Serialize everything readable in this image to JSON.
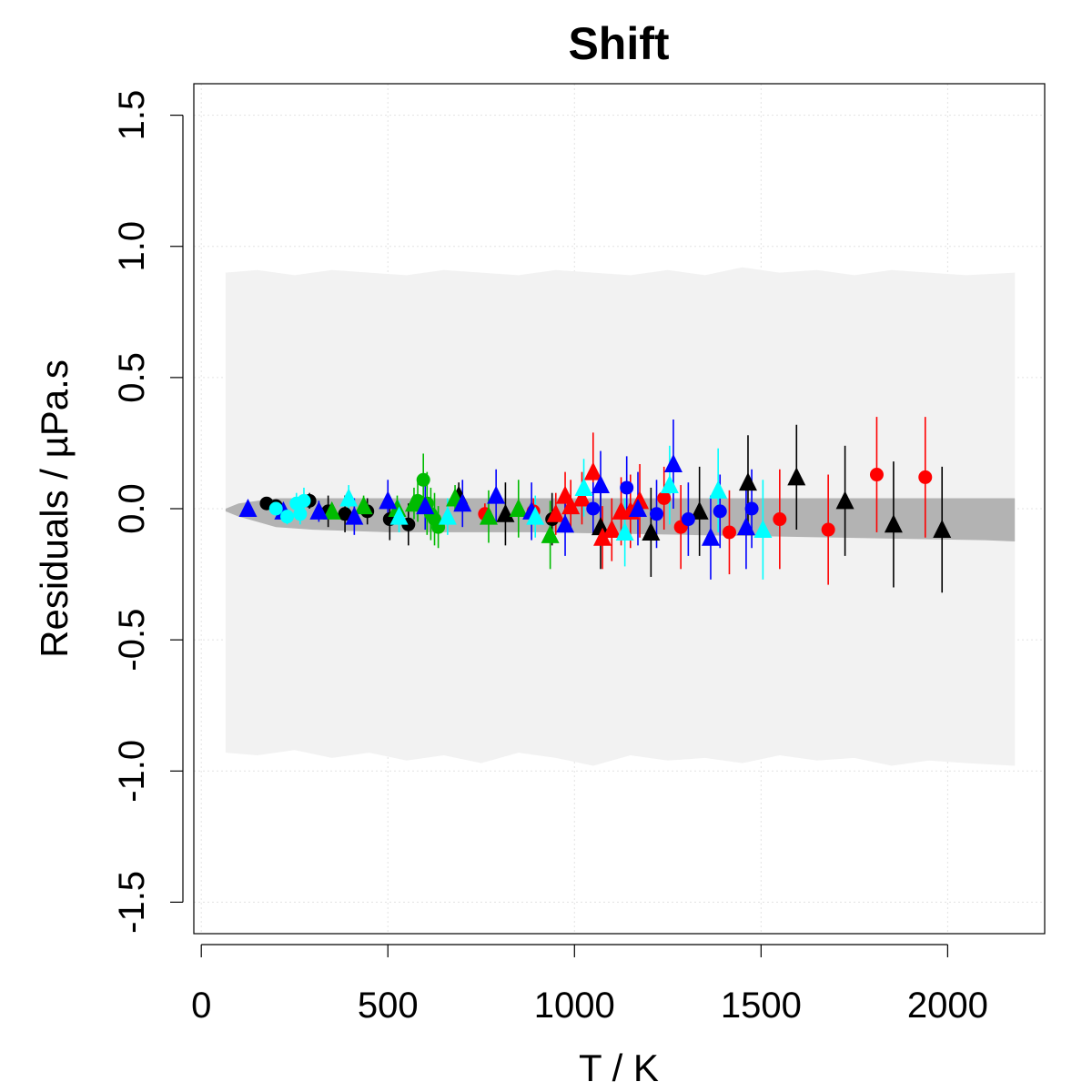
{
  "chart_data": {
    "type": "scatter",
    "title": "Shift",
    "xlabel": "T / K",
    "ylabel": "Residuals / µPa.s",
    "xlim": [
      -20,
      2260
    ],
    "ylim": [
      -1.62,
      1.62
    ],
    "xticks": [
      0,
      500,
      1000,
      1500,
      2000
    ],
    "yticks": [
      -1.5,
      -1.0,
      -0.5,
      0.0,
      0.5,
      1.0,
      1.5
    ],
    "xtick_labels": [
      "0",
      "500",
      "1000",
      "1500",
      "2000"
    ],
    "ytick_labels": [
      "-1.5",
      "-1.0",
      "-0.5",
      "0.0",
      "0.5",
      "1.0",
      "1.5"
    ],
    "grid": true,
    "colors": {
      "black": "#000000",
      "red": "#ff0000",
      "green": "#00bb00",
      "blue": "#0000ff",
      "cyan": "#00ffff",
      "outer_band": "#f2f2f2",
      "inner_band": "#b3b3b3"
    },
    "bands": {
      "outer": {
        "x": [
          65,
          150,
          250,
          350,
          450,
          550,
          650,
          750,
          850,
          950,
          1050,
          1150,
          1250,
          1350,
          1450,
          1550,
          1650,
          1750,
          1850,
          1950,
          2050,
          2180
        ],
        "upper": [
          0.9,
          0.91,
          0.89,
          0.91,
          0.9,
          0.89,
          0.91,
          0.9,
          0.89,
          0.91,
          0.9,
          0.89,
          0.91,
          0.89,
          0.92,
          0.9,
          0.91,
          0.89,
          0.91,
          0.9,
          0.89,
          0.9
        ],
        "lower": [
          -0.93,
          -0.94,
          -0.92,
          -0.95,
          -0.93,
          -0.96,
          -0.94,
          -0.97,
          -0.93,
          -0.95,
          -0.98,
          -0.94,
          -0.96,
          -0.95,
          -0.97,
          -0.94,
          -0.96,
          -0.95,
          -0.98,
          -0.96,
          -0.97,
          -0.98
        ]
      },
      "inner": {
        "x": [
          65,
          100,
          150,
          200,
          300,
          400,
          500,
          700,
          900,
          1100,
          1300,
          1500,
          1700,
          1900,
          2100,
          2180
        ],
        "upper": [
          0.0,
          0.02,
          0.03,
          0.04,
          0.04,
          0.04,
          0.04,
          0.04,
          0.04,
          0.04,
          0.04,
          0.04,
          0.04,
          0.04,
          0.04,
          0.04
        ],
        "lower": [
          -0.01,
          -0.03,
          -0.05,
          -0.07,
          -0.08,
          -0.085,
          -0.09,
          -0.09,
          -0.09,
          -0.095,
          -0.1,
          -0.105,
          -0.11,
          -0.115,
          -0.12,
          -0.125
        ]
      }
    },
    "series": [
      {
        "color": "black",
        "marker": "circle",
        "points": [
          {
            "x": 175,
            "y": 0.02,
            "err": 0.02
          },
          {
            "x": 200,
            "y": 0.01,
            "err": 0.02
          },
          {
            "x": 290,
            "y": 0.03,
            "err": 0.03
          },
          {
            "x": 340,
            "y": -0.01,
            "err": 0.06
          },
          {
            "x": 385,
            "y": -0.02,
            "err": 0.07
          },
          {
            "x": 445,
            "y": -0.01,
            "err": 0.05
          },
          {
            "x": 505,
            "y": -0.04,
            "err": 0.08
          },
          {
            "x": 555,
            "y": -0.06,
            "err": 0.08
          },
          {
            "x": 940,
            "y": -0.04,
            "err": 0.1
          }
        ]
      },
      {
        "color": "black",
        "marker": "triangle",
        "points": [
          {
            "x": 690,
            "y": 0.05,
            "err": 0.05
          },
          {
            "x": 815,
            "y": -0.02,
            "err": 0.12
          },
          {
            "x": 1070,
            "y": -0.07,
            "err": 0.16
          },
          {
            "x": 1205,
            "y": -0.09,
            "err": 0.17
          },
          {
            "x": 1335,
            "y": -0.01,
            "err": 0.17
          },
          {
            "x": 1465,
            "y": 0.1,
            "err": 0.18
          },
          {
            "x": 1595,
            "y": 0.12,
            "err": 0.2
          },
          {
            "x": 1725,
            "y": 0.03,
            "err": 0.21
          },
          {
            "x": 1855,
            "y": -0.06,
            "err": 0.24
          },
          {
            "x": 1985,
            "y": -0.08,
            "err": 0.24
          }
        ]
      },
      {
        "color": "red",
        "marker": "circle",
        "points": [
          {
            "x": 760,
            "y": -0.02,
            "err": 0.04
          },
          {
            "x": 890,
            "y": -0.01,
            "err": 0.05
          },
          {
            "x": 1240,
            "y": 0.04,
            "err": 0.12
          },
          {
            "x": 1285,
            "y": -0.07,
            "err": 0.16
          },
          {
            "x": 1415,
            "y": -0.09,
            "err": 0.16
          },
          {
            "x": 1550,
            "y": -0.04,
            "err": 0.19
          },
          {
            "x": 1680,
            "y": -0.08,
            "err": 0.21
          },
          {
            "x": 1810,
            "y": 0.13,
            "err": 0.22
          },
          {
            "x": 1940,
            "y": 0.12,
            "err": 0.23
          }
        ]
      },
      {
        "color": "red",
        "marker": "triangle",
        "points": [
          {
            "x": 950,
            "y": -0.02,
            "err": 0.08
          },
          {
            "x": 975,
            "y": 0.05,
            "err": 0.09
          },
          {
            "x": 990,
            "y": 0.01,
            "err": 0.1
          },
          {
            "x": 1020,
            "y": 0.04,
            "err": 0.1
          },
          {
            "x": 1050,
            "y": 0.14,
            "err": 0.15
          },
          {
            "x": 1075,
            "y": -0.11,
            "err": 0.12
          },
          {
            "x": 1100,
            "y": -0.08,
            "err": 0.12
          },
          {
            "x": 1125,
            "y": -0.01,
            "err": 0.13
          },
          {
            "x": 1150,
            "y": -0.01,
            "err": 0.14
          },
          {
            "x": 1175,
            "y": 0.03,
            "err": 0.14
          }
        ]
      },
      {
        "color": "green",
        "marker": "circle",
        "points": [
          {
            "x": 580,
            "y": 0.03,
            "err": 0.08
          },
          {
            "x": 595,
            "y": 0.11,
            "err": 0.1
          },
          {
            "x": 605,
            "y": 0.02,
            "err": 0.12
          },
          {
            "x": 615,
            "y": -0.02,
            "err": 0.1
          },
          {
            "x": 625,
            "y": -0.04,
            "err": 0.1
          },
          {
            "x": 635,
            "y": -0.07,
            "err": 0.08
          }
        ]
      },
      {
        "color": "green",
        "marker": "triangle",
        "points": [
          {
            "x": 350,
            "y": -0.01,
            "err": 0.03
          },
          {
            "x": 435,
            "y": 0.01,
            "err": 0.04
          },
          {
            "x": 525,
            "y": 0.0,
            "err": 0.05
          },
          {
            "x": 570,
            "y": 0.02,
            "err": 0.06
          },
          {
            "x": 680,
            "y": 0.04,
            "err": 0.05
          },
          {
            "x": 770,
            "y": -0.03,
            "err": 0.1
          },
          {
            "x": 850,
            "y": 0.0,
            "err": 0.11
          },
          {
            "x": 935,
            "y": -0.1,
            "err": 0.13
          }
        ]
      },
      {
        "color": "blue",
        "marker": "circle",
        "points": [
          {
            "x": 1050,
            "y": 0.0,
            "err": 0.1
          },
          {
            "x": 1140,
            "y": 0.08,
            "err": 0.12
          },
          {
            "x": 1220,
            "y": -0.02,
            "err": 0.13
          },
          {
            "x": 1305,
            "y": -0.04,
            "err": 0.14
          },
          {
            "x": 1390,
            "y": -0.01,
            "err": 0.14
          },
          {
            "x": 1475,
            "y": 0.0,
            "err": 0.15
          }
        ]
      },
      {
        "color": "blue",
        "marker": "triangle",
        "points": [
          {
            "x": 125,
            "y": 0.0,
            "err": 0.02
          },
          {
            "x": 220,
            "y": -0.01,
            "err": 0.03
          },
          {
            "x": 315,
            "y": -0.01,
            "err": 0.04
          },
          {
            "x": 410,
            "y": -0.03,
            "err": 0.07
          },
          {
            "x": 500,
            "y": 0.03,
            "err": 0.08
          },
          {
            "x": 600,
            "y": 0.01,
            "err": 0.09
          },
          {
            "x": 700,
            "y": 0.02,
            "err": 0.09
          },
          {
            "x": 790,
            "y": 0.05,
            "err": 0.1
          },
          {
            "x": 885,
            "y": -0.01,
            "err": 0.11
          },
          {
            "x": 975,
            "y": -0.06,
            "err": 0.12
          },
          {
            "x": 1070,
            "y": 0.09,
            "err": 0.13
          },
          {
            "x": 1170,
            "y": 0.0,
            "err": 0.14
          },
          {
            "x": 1265,
            "y": 0.17,
            "err": 0.17
          },
          {
            "x": 1365,
            "y": -0.11,
            "err": 0.16
          },
          {
            "x": 1460,
            "y": -0.07,
            "err": 0.16
          }
        ]
      },
      {
        "color": "cyan",
        "marker": "circle",
        "points": [
          {
            "x": 200,
            "y": 0.0,
            "err": 0.02
          },
          {
            "x": 230,
            "y": -0.03,
            "err": 0.03
          },
          {
            "x": 255,
            "y": 0.02,
            "err": 0.04
          },
          {
            "x": 265,
            "y": -0.02,
            "err": 0.04
          },
          {
            "x": 275,
            "y": 0.03,
            "err": 0.05
          }
        ]
      },
      {
        "color": "cyan",
        "marker": "triangle",
        "points": [
          {
            "x": 395,
            "y": 0.04,
            "err": 0.05
          },
          {
            "x": 530,
            "y": -0.03,
            "err": 0.06
          },
          {
            "x": 660,
            "y": -0.03,
            "err": 0.07
          },
          {
            "x": 895,
            "y": -0.03,
            "err": 0.08
          },
          {
            "x": 1025,
            "y": 0.08,
            "err": 0.11
          },
          {
            "x": 1135,
            "y": -0.09,
            "err": 0.13
          },
          {
            "x": 1255,
            "y": 0.09,
            "err": 0.15
          },
          {
            "x": 1385,
            "y": 0.07,
            "err": 0.16
          },
          {
            "x": 1505,
            "y": -0.08,
            "err": 0.19
          }
        ]
      }
    ]
  }
}
